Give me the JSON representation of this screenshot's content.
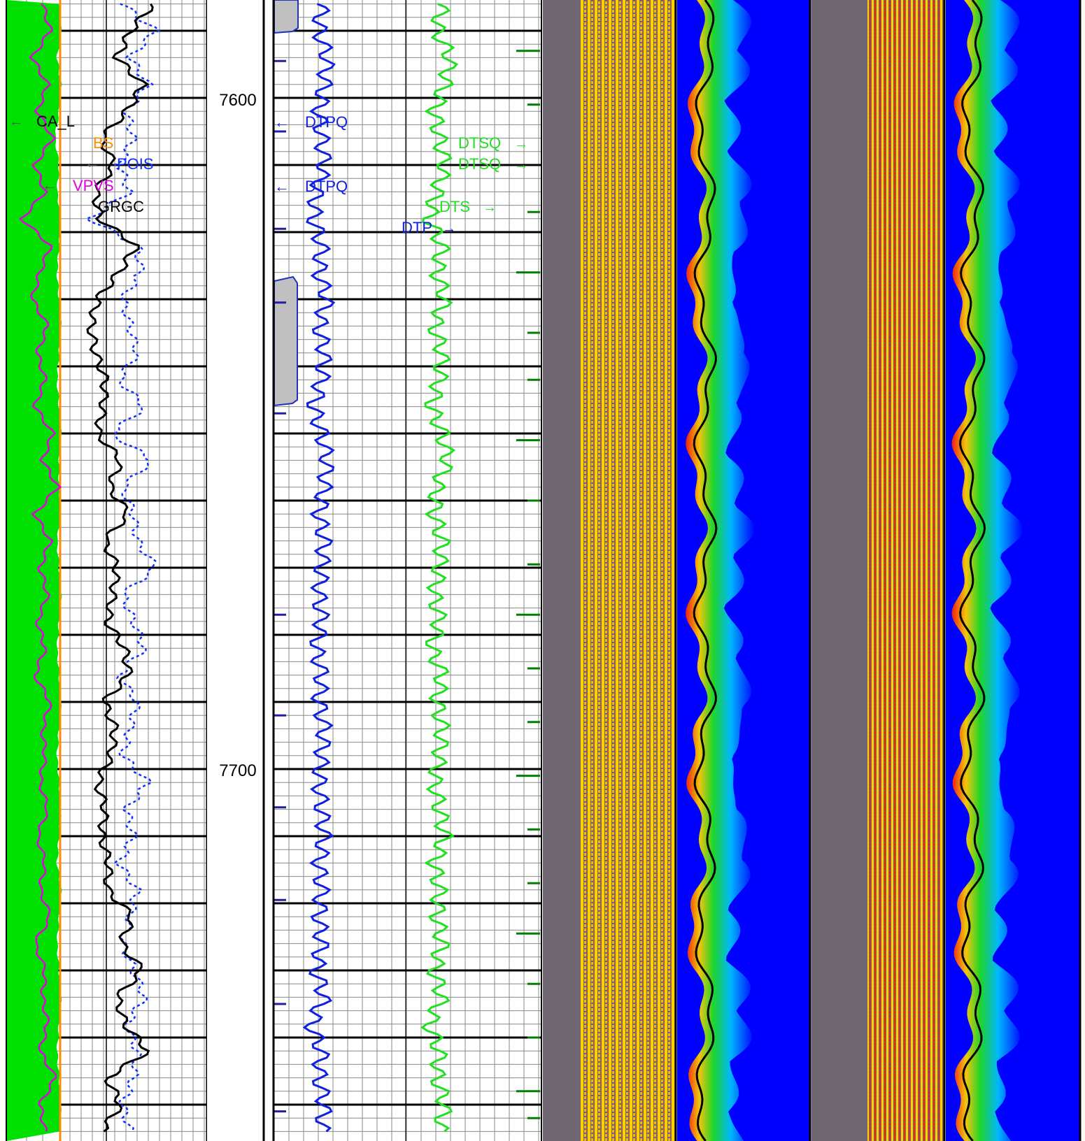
{
  "depth_axis": {
    "unit": "",
    "visible_range": [
      7586,
      7755
    ],
    "major_labels": [
      {
        "depth": 7600,
        "text": "7600"
      },
      {
        "depth": 7700,
        "text": "7700"
      }
    ]
  },
  "curve_labels": {
    "track1": {
      "cal": "CA_L",
      "bs": "BS",
      "pois": "POIS",
      "vpvs": "VPVS",
      "grgc": "GRGC"
    },
    "track2": {
      "dtpq": "DTPQ",
      "dtsq": "DTSQ",
      "dts": "DTS",
      "dtp": "DTP"
    }
  },
  "colors": {
    "caliper_fill": "#00e000",
    "bit_size": "#ff8c00",
    "vpvs": "#e000e0",
    "pois": "#1030ff",
    "grgc": "#000000",
    "dtp": "#1020e0",
    "dts": "#20e020",
    "quality_flag": "#c0c0c0",
    "dtpq_ticks": "#2020a0",
    "dtsq_ticks": "#008000",
    "vdl_background": "#6e6670",
    "vdl_signal": "#ffd000",
    "vdl_peak": "#ff2000",
    "coherence_background": "#0000ff"
  },
  "chart_data": [
    {
      "type": "line",
      "track": "gamma-ray / caliper / poisson",
      "depth_range": [
        7586,
        7755
      ],
      "series": [
        {
          "name": "CA_L",
          "depth": [
            7586,
            7590,
            7594,
            7598,
            7602,
            7606,
            7610,
            7614,
            7618,
            7622,
            7626,
            7630,
            7634,
            7638,
            7642,
            7646,
            7650,
            7654,
            7658,
            7662,
            7666,
            7670,
            7674,
            7678,
            7682,
            7686,
            7690,
            7694,
            7698,
            7702,
            7706,
            7710,
            7714,
            7718,
            7722,
            7726,
            7730,
            7734,
            7738,
            7742,
            7746,
            7750,
            7754
          ],
          "values": [
            8.6,
            8.7,
            8.5,
            8.7,
            8.6,
            8.4,
            8.6,
            8.5,
            8.7,
            8.6,
            8.5,
            8.6,
            8.7,
            8.6,
            8.5,
            8.6,
            8.7,
            8.6,
            8.6,
            8.7,
            8.5,
            8.6,
            8.7,
            8.6,
            8.5,
            8.6,
            8.7,
            8.6,
            8.5,
            8.6,
            8.7,
            8.6,
            8.5,
            8.7,
            8.6,
            8.5,
            8.6,
            8.7,
            8.6,
            8.5,
            8.6,
            8.7,
            8.6
          ]
        },
        {
          "name": "BS",
          "depth": [
            7586,
            7755
          ],
          "values": [
            8.75,
            8.75
          ]
        },
        {
          "name": "VPVS",
          "depth": [
            7586,
            7590,
            7594,
            7598,
            7602,
            7606,
            7610,
            7614,
            7618,
            7622,
            7626,
            7630,
            7634,
            7638,
            7642,
            7646,
            7650,
            7654,
            7658,
            7662,
            7666,
            7670,
            7674,
            7678,
            7682,
            7686,
            7690,
            7694,
            7698,
            7702,
            7706,
            7710,
            7714,
            7718,
            7722,
            7726,
            7730,
            7734,
            7738,
            7742,
            7746,
            7750,
            7754
          ],
          "values": [
            1.78,
            1.84,
            1.7,
            1.82,
            1.74,
            1.86,
            1.72,
            1.8,
            1.62,
            1.84,
            1.76,
            1.7,
            1.82,
            1.74,
            1.8,
            1.72,
            1.86,
            1.78,
            1.9,
            1.72,
            1.84,
            1.76,
            1.82,
            1.74,
            1.8,
            1.72,
            1.84,
            1.78,
            1.8,
            1.76,
            1.82,
            1.74,
            1.8,
            1.76,
            1.84,
            1.72,
            1.8,
            1.78,
            1.82,
            1.76,
            1.88,
            1.76,
            1.8
          ]
        },
        {
          "name": "POIS",
          "depth": [
            7586,
            7590,
            7594,
            7598,
            7602,
            7606,
            7610,
            7614,
            7618,
            7622,
            7626,
            7630,
            7634,
            7638,
            7642,
            7646,
            7650,
            7654,
            7658,
            7662,
            7666,
            7670,
            7674,
            7678,
            7682,
            7686,
            7690,
            7694,
            7698,
            7702,
            7706,
            7710,
            7714,
            7718,
            7722,
            7726,
            7730,
            7734,
            7738,
            7742,
            7746,
            7750,
            7754
          ],
          "values": [
            0.27,
            0.36,
            0.29,
            0.34,
            0.28,
            0.3,
            0.26,
            0.29,
            0.18,
            0.31,
            0.32,
            0.27,
            0.29,
            0.31,
            0.26,
            0.33,
            0.24,
            0.35,
            0.27,
            0.3,
            0.31,
            0.36,
            0.27,
            0.3,
            0.33,
            0.26,
            0.31,
            0.29,
            0.27,
            0.34,
            0.28,
            0.3,
            0.26,
            0.31,
            0.29,
            0.27,
            0.3,
            0.33,
            0.28,
            0.31,
            0.3,
            0.27,
            0.29
          ]
        },
        {
          "name": "GRGC",
          "depth": [
            7586,
            7590,
            7594,
            7598,
            7602,
            7606,
            7610,
            7614,
            7618,
            7622,
            7626,
            7630,
            7634,
            7638,
            7642,
            7646,
            7650,
            7654,
            7658,
            7662,
            7666,
            7670,
            7674,
            7678,
            7682,
            7686,
            7690,
            7694,
            7698,
            7702,
            7706,
            7710,
            7714,
            7718,
            7722,
            7726,
            7730,
            7734,
            7738,
            7742,
            7746,
            7750,
            7754
          ],
          "values": [
            95,
            72,
            58,
            85,
            68,
            42,
            55,
            36,
            40,
            78,
            60,
            38,
            31,
            36,
            46,
            44,
            38,
            62,
            50,
            70,
            45,
            58,
            54,
            48,
            66,
            70,
            45,
            56,
            52,
            38,
            46,
            42,
            50,
            48,
            74,
            62,
            84,
            58,
            66,
            90,
            48,
            62,
            42
          ]
        }
      ]
    },
    {
      "type": "line",
      "track": "sonic slowness",
      "depth_range": [
        7586,
        7755
      ],
      "series": [
        {
          "name": "DTP",
          "depth": [
            7586,
            7590,
            7594,
            7598,
            7602,
            7606,
            7610,
            7614,
            7618,
            7622,
            7626,
            7630,
            7634,
            7638,
            7642,
            7646,
            7650,
            7654,
            7658,
            7662,
            7666,
            7670,
            7674,
            7678,
            7682,
            7686,
            7690,
            7694,
            7698,
            7702,
            7706,
            7710,
            7714,
            7718,
            7722,
            7726,
            7730,
            7734,
            7738,
            7742,
            7746,
            7750,
            7754
          ],
          "values": [
            58,
            57,
            60,
            59,
            57,
            58,
            59,
            56,
            55,
            58,
            57,
            60,
            57,
            59,
            58,
            55,
            58,
            60,
            59,
            57,
            59,
            58,
            57,
            58,
            56,
            58,
            57,
            59,
            58,
            57,
            58,
            59,
            57,
            58,
            57,
            58,
            56,
            59,
            54,
            58,
            57,
            59,
            58
          ]
        },
        {
          "name": "DTS",
          "depth": [
            7586,
            7590,
            7594,
            7598,
            7602,
            7606,
            7610,
            7614,
            7618,
            7622,
            7626,
            7630,
            7634,
            7638,
            7642,
            7646,
            7650,
            7654,
            7658,
            7662,
            7666,
            7670,
            7674,
            7678,
            7682,
            7686,
            7690,
            7694,
            7698,
            7702,
            7706,
            7710,
            7714,
            7718,
            7722,
            7726,
            7730,
            7734,
            7738,
            7742,
            7746,
            7750,
            7754
          ],
          "values": [
            103,
            101,
            106,
            104,
            100,
            102,
            104,
            101,
            98,
            103,
            101,
            104,
            100,
            103,
            102,
            99,
            103,
            105,
            101,
            100,
            103,
            102,
            100,
            102,
            99,
            103,
            101,
            103,
            102,
            100,
            102,
            104,
            100,
            102,
            101,
            103,
            100,
            103,
            98,
            102,
            101,
            104,
            102
          ]
        }
      ]
    }
  ]
}
